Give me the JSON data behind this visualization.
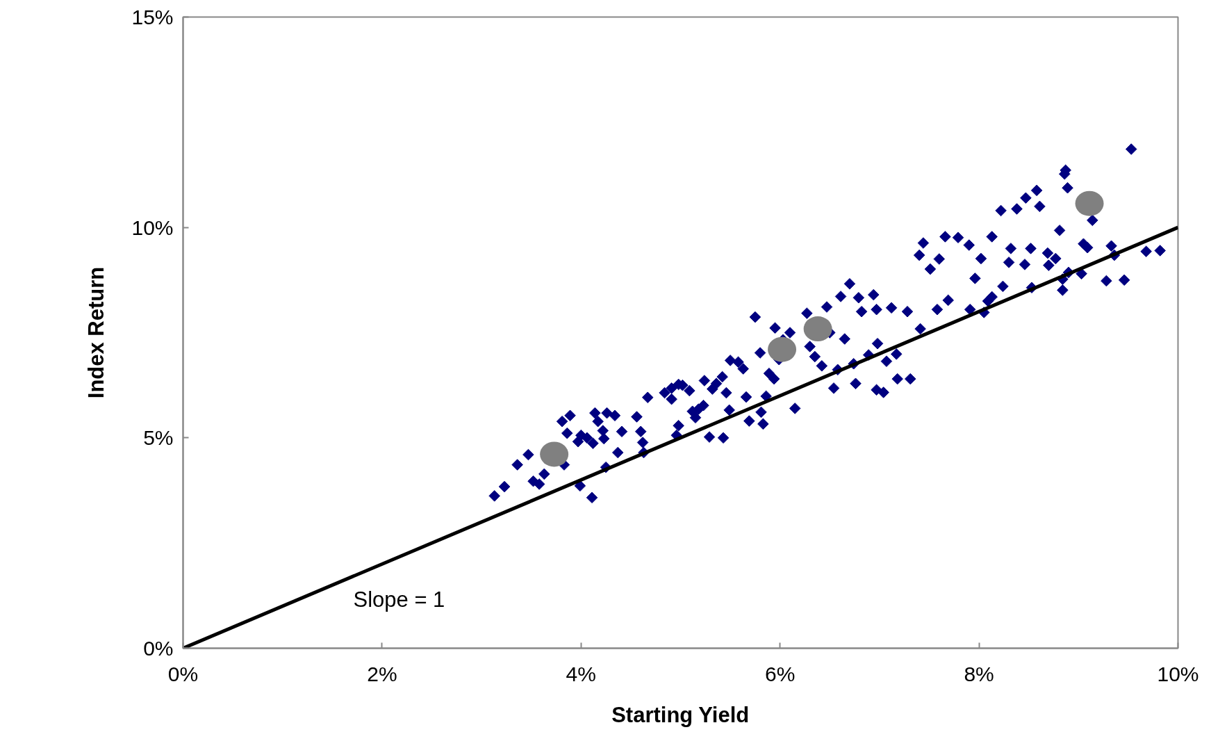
{
  "chart_data": {
    "type": "scatter",
    "xlabel": "Starting Yield",
    "ylabel": "Index Return",
    "xlim": [
      0,
      10
    ],
    "ylim": [
      0,
      15
    ],
    "xticks": [
      {
        "value": 0,
        "label": "0%"
      },
      {
        "value": 2,
        "label": "2%"
      },
      {
        "value": 4,
        "label": "4%"
      },
      {
        "value": 6,
        "label": "6%"
      },
      {
        "value": 8,
        "label": "8%"
      },
      {
        "value": 10,
        "label": "10%"
      }
    ],
    "yticks": [
      {
        "value": 0,
        "label": "0%"
      },
      {
        "value": 5,
        "label": "5%"
      },
      {
        "value": 10,
        "label": "10%"
      },
      {
        "value": 15,
        "label": "15%"
      }
    ],
    "grid": false,
    "annotations": [
      "Slope = 1"
    ],
    "series": [
      {
        "marker": "diamond",
        "color": "#000080",
        "x": [
          3.13,
          3.23,
          3.36,
          3.47,
          3.52,
          3.58,
          3.63,
          3.83,
          3.81,
          3.89,
          3.86,
          3.97,
          4.0,
          4.06,
          4.12,
          3.99,
          4.11,
          4.14,
          4.17,
          4.22,
          4.23,
          4.26,
          4.34,
          4.37,
          4.25,
          4.41,
          4.56,
          4.6,
          4.62,
          4.63,
          4.67,
          4.84,
          4.91,
          4.98,
          4.91,
          4.98,
          4.96,
          5.02,
          5.09,
          5.12,
          5.15,
          5.18,
          5.23,
          5.24,
          5.29,
          5.32,
          5.36,
          5.42,
          5.43,
          5.46,
          5.49,
          5.5,
          5.58,
          5.63,
          5.66,
          5.69,
          5.75,
          5.8,
          5.81,
          5.83,
          5.86,
          5.89,
          5.94,
          5.95,
          5.99,
          6.03,
          6.1,
          6.15,
          6.27,
          6.3,
          6.35,
          6.42,
          6.47,
          6.5,
          6.54,
          6.58,
          6.61,
          6.65,
          6.7,
          6.74,
          6.76,
          6.79,
          6.82,
          6.89,
          6.94,
          6.97,
          6.98,
          6.97,
          7.04,
          7.07,
          7.12,
          7.17,
          7.18,
          7.28,
          7.31,
          7.41,
          7.44,
          7.4,
          7.51,
          7.6,
          7.58,
          7.66,
          7.69,
          7.79,
          7.9,
          7.91,
          7.96,
          8.02,
          8.05,
          8.09,
          8.13,
          8.13,
          8.22,
          8.24,
          8.3,
          8.32,
          8.38,
          8.46,
          8.47,
          8.52,
          8.53,
          8.58,
          8.61,
          8.69,
          8.7,
          8.77,
          8.81,
          8.84,
          8.84,
          8.87,
          8.86,
          8.89,
          8.9,
          9.03,
          9.05,
          9.09,
          9.14,
          9.28,
          9.33,
          9.36,
          9.46,
          9.53,
          9.68,
          9.82
        ],
        "values": [
          3.62,
          3.84,
          4.36,
          4.6,
          3.97,
          3.9,
          4.14,
          4.36,
          5.39,
          5.53,
          5.11,
          4.91,
          5.06,
          5.0,
          4.87,
          3.86,
          3.58,
          5.59,
          5.39,
          5.17,
          4.98,
          5.59,
          5.53,
          4.65,
          4.3,
          5.15,
          5.5,
          5.15,
          4.89,
          4.65,
          5.96,
          6.07,
          6.18,
          6.27,
          5.92,
          5.29,
          5.06,
          6.25,
          6.12,
          5.63,
          5.48,
          5.68,
          5.77,
          6.36,
          5.02,
          6.16,
          6.29,
          6.45,
          5.0,
          6.07,
          5.66,
          6.84,
          6.8,
          6.64,
          5.97,
          5.4,
          7.87,
          7.02,
          5.61,
          5.33,
          5.99,
          6.53,
          6.4,
          7.61,
          6.86,
          7.33,
          7.5,
          5.7,
          7.96,
          7.17,
          6.93,
          6.71,
          8.11,
          7.5,
          6.18,
          6.62,
          8.36,
          7.35,
          8.66,
          6.76,
          6.29,
          8.33,
          8.0,
          6.97,
          8.4,
          8.05,
          7.24,
          6.14,
          6.08,
          6.82,
          8.09,
          6.99,
          6.4,
          8.0,
          6.4,
          7.59,
          9.63,
          9.34,
          9.01,
          9.25,
          8.05,
          9.78,
          8.27,
          9.76,
          9.58,
          8.05,
          8.79,
          9.26,
          7.98,
          8.25,
          8.35,
          9.78,
          10.4,
          8.6,
          9.17,
          9.5,
          10.44,
          9.12,
          10.7,
          9.5,
          8.57,
          10.88,
          10.5,
          9.39,
          9.1,
          9.26,
          9.93,
          8.51,
          8.77,
          11.36,
          11.27,
          10.94,
          8.93,
          8.9,
          9.61,
          9.52,
          10.17,
          8.73,
          9.56,
          9.34,
          8.75,
          11.86,
          9.43,
          9.45
        ]
      },
      {
        "marker": "circle",
        "color": "#808080",
        "x": [
          3.73,
          6.02,
          6.38,
          9.11
        ],
        "values": [
          4.61,
          7.1,
          7.59,
          10.57
        ]
      },
      {
        "type": "line",
        "color": "#000000",
        "line_style": "solid",
        "x": [
          0,
          10
        ],
        "values": [
          0,
          10
        ]
      }
    ]
  }
}
